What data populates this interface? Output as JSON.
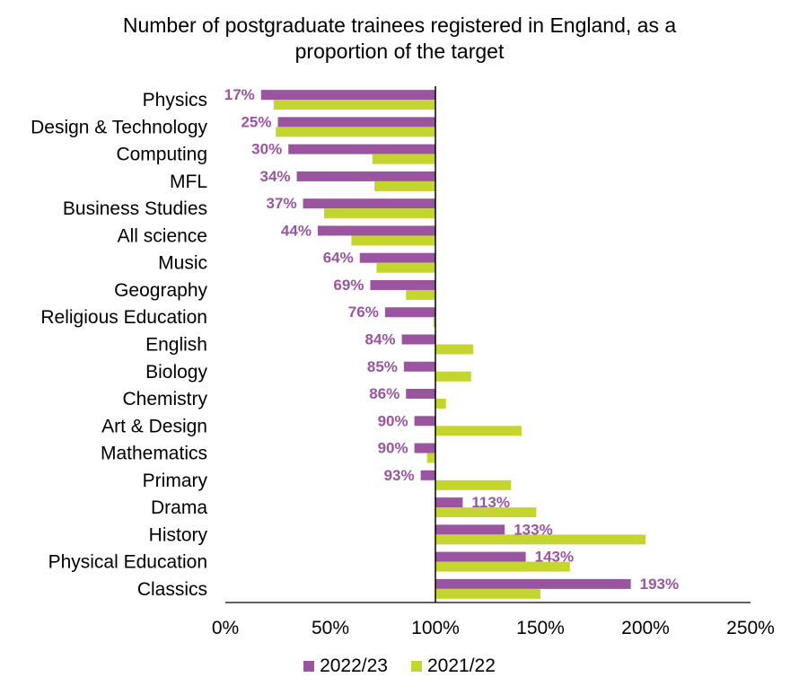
{
  "chart_data": {
    "type": "bar",
    "orientation": "horizontal",
    "title_lines": [
      "Number of postgraduate trainees registered in England, as a",
      "proportion of the target"
    ],
    "categories": [
      "Physics",
      "Design & Technology",
      "Computing",
      "MFL",
      "Business Studies",
      "All science",
      "Music",
      "Geography",
      "Religious Education",
      "English",
      "Biology",
      "Chemistry",
      "Art & Design",
      "Mathematics",
      "Primary",
      "Drama",
      "History",
      "Physical Education",
      "Classics"
    ],
    "series": [
      {
        "name": "2022/23",
        "color": "#9B54A0",
        "values": [
          17,
          25,
          30,
          34,
          37,
          44,
          64,
          69,
          76,
          84,
          85,
          86,
          90,
          90,
          93,
          113,
          133,
          143,
          193
        ],
        "labels": [
          "17%",
          "25%",
          "30%",
          "34%",
          "37%",
          "44%",
          "64%",
          "69%",
          "76%",
          "84%",
          "85%",
          "86%",
          "90%",
          "90%",
          "93%",
          "113%",
          "133%",
          "143%",
          "193%"
        ]
      },
      {
        "name": "2021/22",
        "color": "#C5D52F",
        "values": [
          23,
          24,
          70,
          71,
          47,
          60,
          72,
          86,
          99,
          118,
          117,
          105,
          141,
          96,
          136,
          148,
          200,
          164,
          150
        ]
      }
    ],
    "xlim": [
      0,
      250
    ],
    "xticks": [
      0,
      50,
      100,
      150,
      200,
      250
    ],
    "xtick_labels": [
      "0%",
      "50%",
      "100%",
      "150%",
      "200%",
      "250%"
    ],
    "baseline": 100,
    "grid": false,
    "legend_position": "bottom"
  }
}
